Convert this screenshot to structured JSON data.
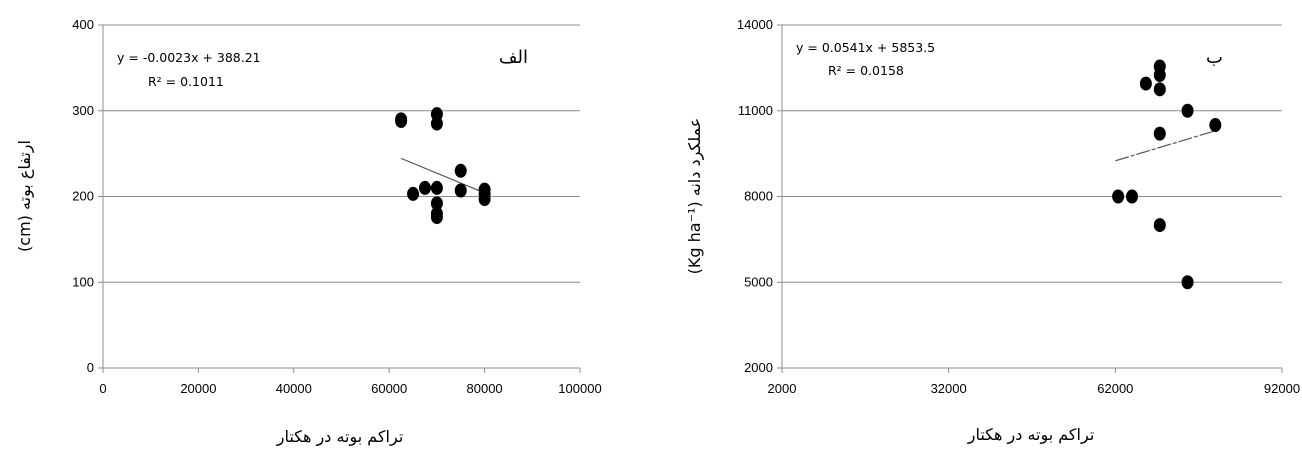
{
  "chart_data": [
    {
      "type": "scatter",
      "panel_label": "الف",
      "xlabel": "تراکم بوته در هکتار",
      "ylabel_text": "ارتفاع بوته",
      "ylabel_unit": "(cm)",
      "xlim": [
        0,
        100000
      ],
      "ylim": [
        0,
        400
      ],
      "xticks": [
        0,
        20000,
        40000,
        60000,
        80000,
        100000
      ],
      "yticks": [
        0,
        100,
        200,
        300,
        400
      ],
      "grid": "horizontal",
      "equation": "y = -0.0023x + 388.21",
      "r2_label": "R² = 0.1011",
      "trend_x": [
        62500,
        80000
      ],
      "trend_slope": -0.0023,
      "trend_intercept": 388.21,
      "points": [
        {
          "x": 62500,
          "y": 290
        },
        {
          "x": 62500,
          "y": 288
        },
        {
          "x": 65000,
          "y": 203
        },
        {
          "x": 67500,
          "y": 210
        },
        {
          "x": 70000,
          "y": 296
        },
        {
          "x": 70000,
          "y": 285
        },
        {
          "x": 70000,
          "y": 210
        },
        {
          "x": 70000,
          "y": 192
        },
        {
          "x": 70000,
          "y": 180
        },
        {
          "x": 70000,
          "y": 176
        },
        {
          "x": 75000,
          "y": 230
        },
        {
          "x": 75000,
          "y": 207
        },
        {
          "x": 80000,
          "y": 208
        },
        {
          "x": 80000,
          "y": 203
        },
        {
          "x": 80000,
          "y": 197
        }
      ],
      "point_color": "#000000"
    },
    {
      "type": "scatter",
      "panel_label": "ب",
      "xlabel": "تراکم بوته در هکتار",
      "ylabel_text": "عملکرد دانه",
      "ylabel_unit": "(Kg ha⁻¹)",
      "xlim": [
        2000,
        92000
      ],
      "ylim": [
        2000,
        14000
      ],
      "xticks": [
        2000,
        32000,
        62000,
        92000
      ],
      "yticks": [
        2000,
        5000,
        8000,
        11000,
        14000
      ],
      "grid": "horizontal",
      "equation": "y = 0.0541x + 5853.5",
      "r2_label": "R² = 0.0158",
      "trend_x": [
        62000,
        80000
      ],
      "trend_y": [
        9250,
        10300
      ],
      "points": [
        {
          "x": 62500,
          "y": 8000
        },
        {
          "x": 65000,
          "y": 8000
        },
        {
          "x": 67500,
          "y": 11950
        },
        {
          "x": 70000,
          "y": 12550
        },
        {
          "x": 70000,
          "y": 12250
        },
        {
          "x": 70000,
          "y": 11750
        },
        {
          "x": 70000,
          "y": 10200
        },
        {
          "x": 70000,
          "y": 7000
        },
        {
          "x": 75000,
          "y": 11000
        },
        {
          "x": 75000,
          "y": 5000
        },
        {
          "x": 80000,
          "y": 10500
        }
      ],
      "point_color": "#000000"
    }
  ]
}
